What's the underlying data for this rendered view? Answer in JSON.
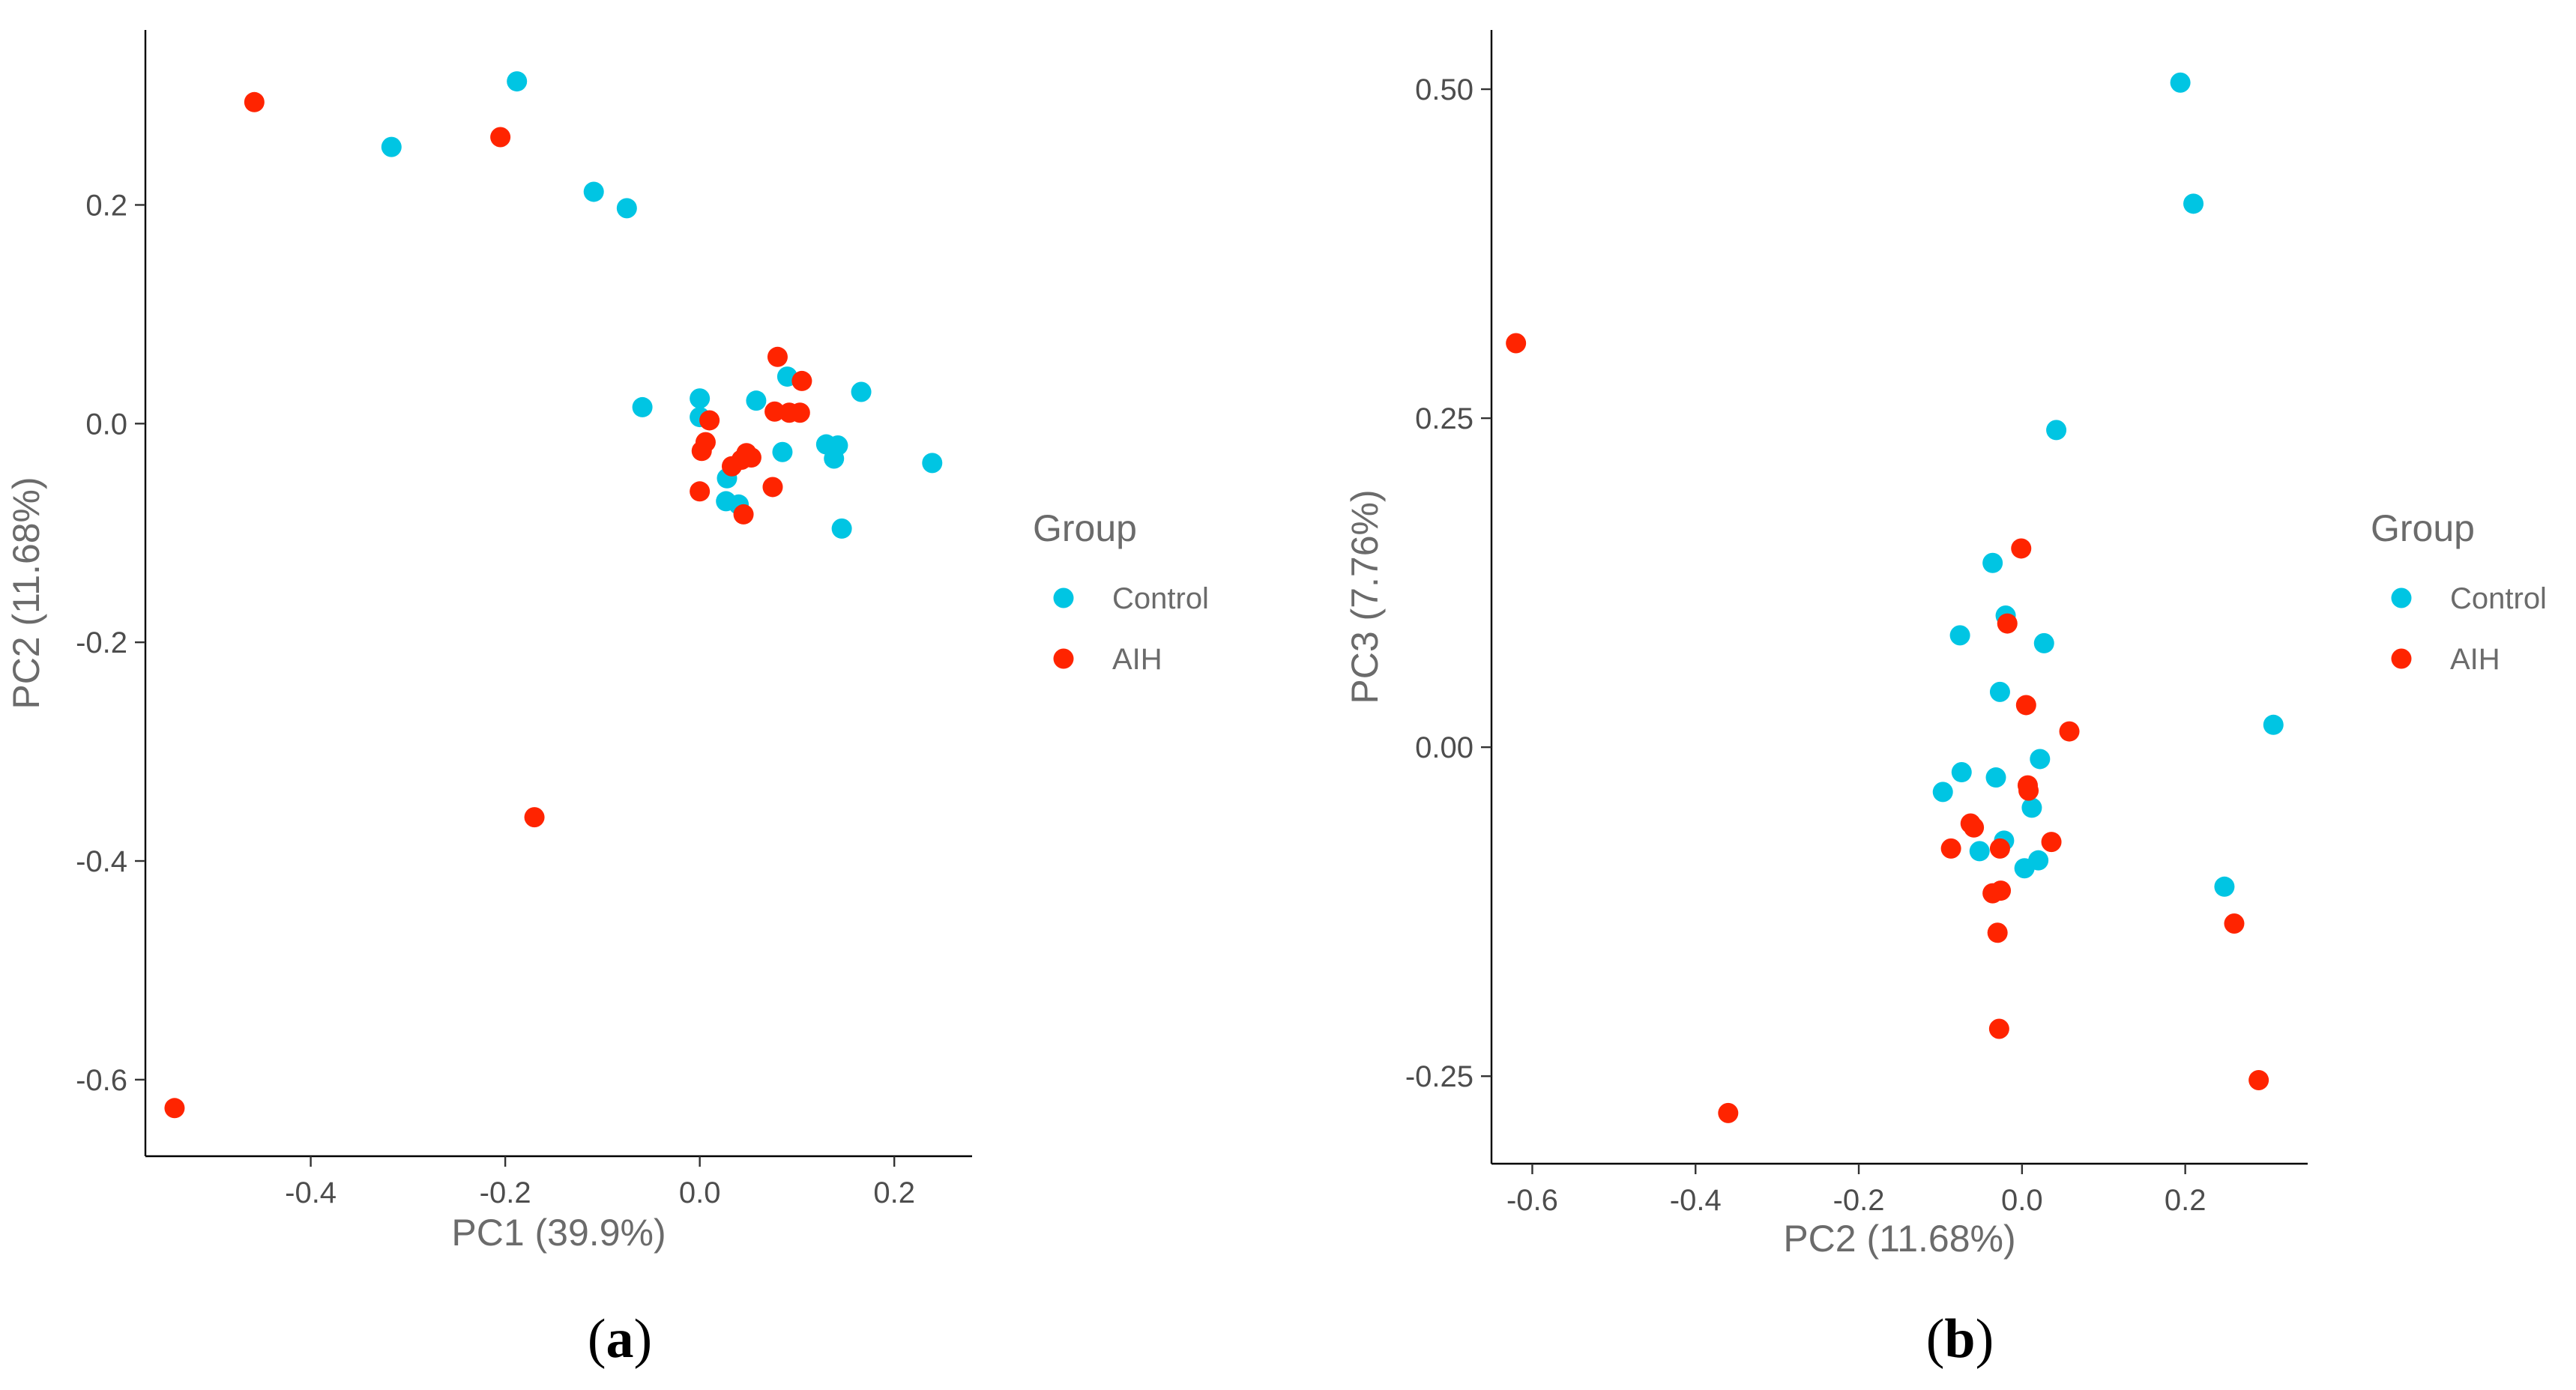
{
  "figure": {
    "panel_a_label": {
      "open": "(",
      "letter": "a",
      "close": ")"
    },
    "panel_b_label": {
      "open": "(",
      "letter": "b",
      "close": ")"
    }
  },
  "colors": {
    "Control": "#00C5E3",
    "AIH": "#FF2400"
  },
  "chart_data": [
    {
      "type": "scatter",
      "xlabel": "PC1 (39.9%)",
      "ylabel": "PC2 (11.68%)",
      "xlim": [
        -0.57,
        0.28
      ],
      "ylim": [
        -0.67,
        0.36
      ],
      "xticks": [
        -0.4,
        -0.2,
        0.0,
        0.2
      ],
      "xtick_labels": [
        "-0.4",
        "-0.2",
        "0.0",
        "0.2"
      ],
      "yticks": [
        -0.6,
        -0.4,
        -0.2,
        0.0,
        0.2
      ],
      "ytick_labels": [
        "-0.6",
        "-0.4",
        "-0.2",
        "0.0",
        "0.2"
      ],
      "grid": false,
      "legend": {
        "title": "Group",
        "position": "right",
        "entries": [
          "Control",
          "AIH"
        ]
      },
      "series": [
        {
          "name": "Control",
          "points": [
            [
              -0.188,
              0.313
            ],
            [
              -0.317,
              0.253
            ],
            [
              -0.109,
              0.212
            ],
            [
              -0.075,
              0.197
            ],
            [
              -0.059,
              0.015
            ],
            [
              0.0,
              0.023
            ],
            [
              0.0,
              0.006
            ],
            [
              0.058,
              0.021
            ],
            [
              0.09,
              0.043
            ],
            [
              0.166,
              0.029
            ],
            [
              0.085,
              -0.026
            ],
            [
              0.13,
              -0.019
            ],
            [
              0.142,
              -0.02
            ],
            [
              0.138,
              -0.032
            ],
            [
              0.239,
              -0.036
            ],
            [
              0.028,
              -0.05
            ],
            [
              0.027,
              -0.071
            ],
            [
              0.04,
              -0.074
            ],
            [
              0.146,
              -0.096
            ]
          ]
        },
        {
          "name": "AIH",
          "points": [
            [
              -0.458,
              0.294
            ],
            [
              -0.205,
              0.262
            ],
            [
              0.08,
              0.061
            ],
            [
              0.105,
              0.039
            ],
            [
              0.077,
              0.011
            ],
            [
              0.092,
              0.01
            ],
            [
              0.103,
              0.01
            ],
            [
              0.01,
              0.003
            ],
            [
              0.006,
              -0.017
            ],
            [
              0.002,
              -0.025
            ],
            [
              0.048,
              -0.027
            ],
            [
              0.053,
              -0.031
            ],
            [
              0.043,
              -0.033
            ],
            [
              0.033,
              -0.039
            ],
            [
              0.075,
              -0.058
            ],
            [
              0.0,
              -0.062
            ],
            [
              0.045,
              -0.083
            ],
            [
              -0.17,
              -0.36
            ],
            [
              -0.54,
              -0.626
            ]
          ]
        }
      ]
    },
    {
      "type": "scatter",
      "xlabel": "PC2 (11.68%)",
      "ylabel": "PC3 (7.76%)",
      "xlim": [
        -0.65,
        0.35
      ],
      "ylim": [
        -0.3165,
        0.545
      ],
      "xticks": [
        -0.6,
        -0.4,
        -0.2,
        0.0,
        0.2
      ],
      "xtick_labels": [
        "-0.6",
        "-0.4",
        "-0.2",
        "0.0",
        "0.2"
      ],
      "yticks": [
        -0.25,
        0.0,
        0.25,
        0.5
      ],
      "ytick_labels": [
        "-0.25",
        "0.00",
        "0.25",
        "0.50"
      ],
      "grid": false,
      "legend": {
        "title": "Group",
        "position": "right",
        "entries": [
          "Control",
          "AIH"
        ]
      },
      "series": [
        {
          "name": "Control",
          "points": [
            [
              0.194,
              0.505
            ],
            [
              0.21,
              0.413
            ],
            [
              0.042,
              0.241
            ],
            [
              -0.036,
              0.14
            ],
            [
              -0.02,
              0.1
            ],
            [
              -0.076,
              0.085
            ],
            [
              0.027,
              0.079
            ],
            [
              -0.027,
              0.042
            ],
            [
              0.308,
              0.017
            ],
            [
              0.022,
              -0.009
            ],
            [
              -0.074,
              -0.019
            ],
            [
              -0.032,
              -0.023
            ],
            [
              -0.097,
              -0.034
            ],
            [
              0.012,
              -0.046
            ],
            [
              -0.022,
              -0.071
            ],
            [
              -0.052,
              -0.079
            ],
            [
              0.02,
              -0.086
            ],
            [
              0.003,
              -0.092
            ],
            [
              0.248,
              -0.106
            ]
          ]
        },
        {
          "name": "AIH",
          "points": [
            [
              -0.62,
              0.307
            ],
            [
              -0.001,
              0.151
            ],
            [
              -0.018,
              0.094
            ],
            [
              0.005,
              0.032
            ],
            [
              0.058,
              0.012
            ],
            [
              0.007,
              -0.029
            ],
            [
              0.008,
              -0.033
            ],
            [
              -0.063,
              -0.058
            ],
            [
              -0.059,
              -0.061
            ],
            [
              -0.087,
              -0.077
            ],
            [
              -0.027,
              -0.077
            ],
            [
              0.036,
              -0.072
            ],
            [
              -0.036,
              -0.111
            ],
            [
              -0.026,
              -0.109
            ],
            [
              -0.03,
              -0.141
            ],
            [
              0.26,
              -0.134
            ],
            [
              -0.028,
              -0.214
            ],
            [
              0.29,
              -0.253
            ],
            [
              -0.36,
              -0.278
            ]
          ]
        }
      ]
    }
  ]
}
